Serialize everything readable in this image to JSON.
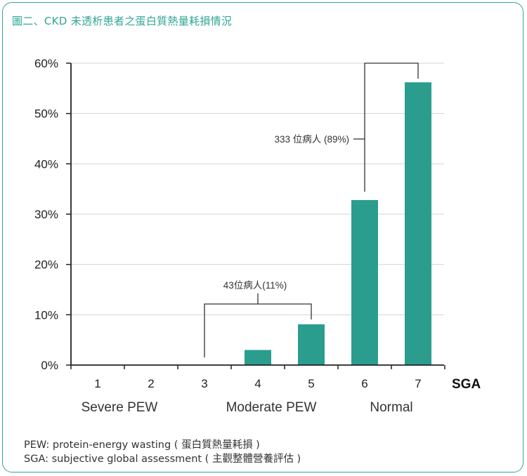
{
  "title": "圖二、CKD 未透析患者之蛋白質熱量耗損情況",
  "colors": {
    "accent": "#31a596",
    "bar": "#2a9d8f",
    "axis": "#222222"
  },
  "chart_data": {
    "type": "bar",
    "categories": [
      "1",
      "2",
      "3",
      "4",
      "5",
      "6",
      "7"
    ],
    "values": [
      0,
      0,
      0,
      3.0,
      8.1,
      32.8,
      56.2
    ],
    "ylim": [
      0,
      60
    ],
    "yticks": [
      "0%",
      "10%",
      "20%",
      "30%",
      "40%",
      "50%",
      "60%"
    ],
    "xlabel": "SGA",
    "grid": true,
    "groups": [
      {
        "label": "Severe PEW"
      },
      {
        "label": "Moderate PEW"
      },
      {
        "label": "Normal"
      }
    ],
    "annotations": [
      {
        "text": "43位病人(11%)",
        "from": 2,
        "to": 4
      },
      {
        "text": "333 位病人 (89%)",
        "from": 5,
        "to": 6
      }
    ]
  },
  "footnotes": [
    "PEW: protein-energy wasting ( 蛋白質熱量耗損 )",
    "SGA: subjective global assessment ( 主觀整體營養評估 )"
  ]
}
